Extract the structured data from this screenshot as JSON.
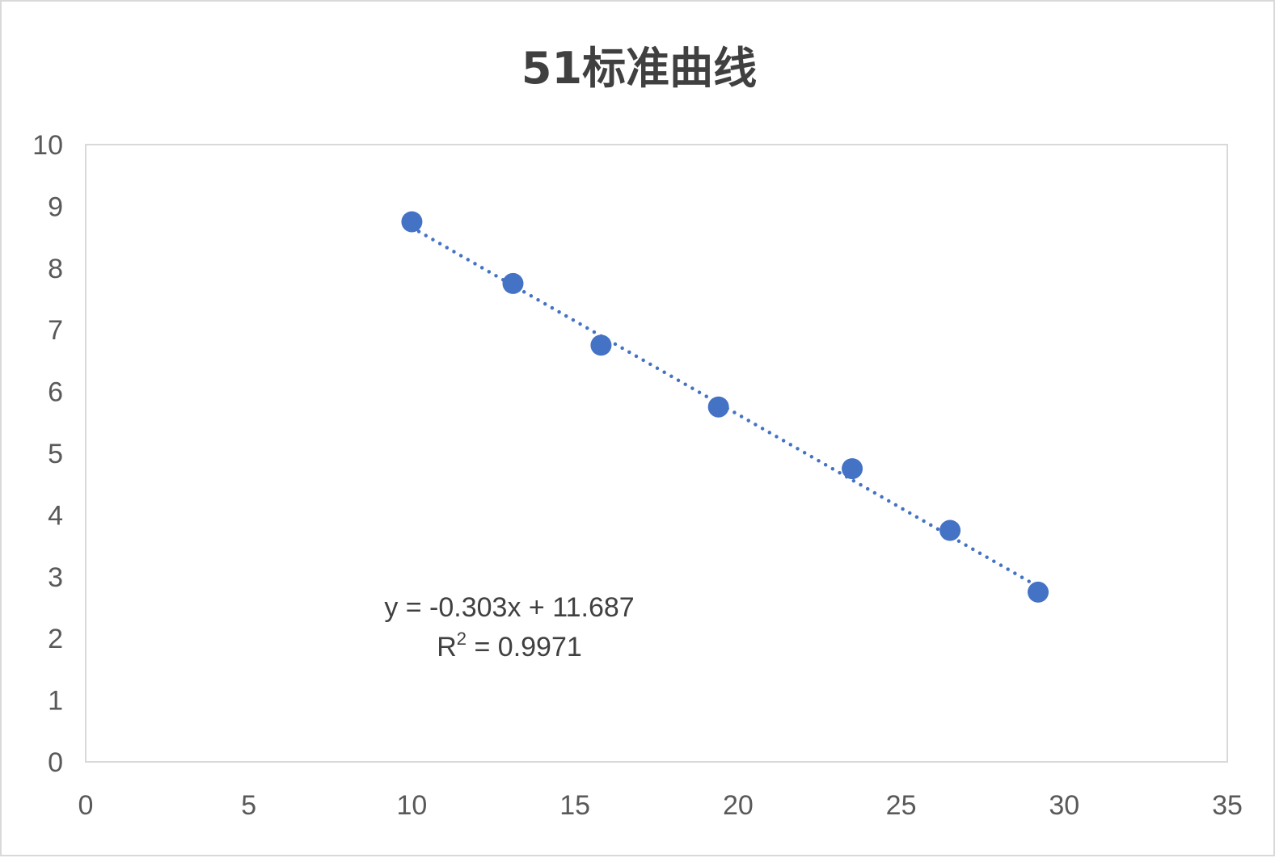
{
  "chart_data": {
    "type": "scatter",
    "title": "51标准曲线",
    "xlabel": "",
    "ylabel": "",
    "xlim": [
      0,
      35
    ],
    "ylim": [
      0,
      10
    ],
    "x_ticks": [
      0,
      5,
      10,
      15,
      20,
      25,
      30,
      35
    ],
    "y_ticks": [
      0,
      1,
      2,
      3,
      4,
      5,
      6,
      7,
      8,
      9,
      10
    ],
    "grid": false,
    "legend": "none",
    "series": [
      {
        "points": [
          {
            "x": 10.0,
            "y": 8.75
          },
          {
            "x": 13.1,
            "y": 7.75
          },
          {
            "x": 15.8,
            "y": 6.75
          },
          {
            "x": 19.4,
            "y": 5.75
          },
          {
            "x": 23.5,
            "y": 4.75
          },
          {
            "x": 26.5,
            "y": 3.75
          },
          {
            "x": 29.2,
            "y": 2.75
          }
        ],
        "color": "#4472c4"
      }
    ],
    "trendline": {
      "type": "linear",
      "style": "dotted",
      "slope": -0.303,
      "intercept": 11.687,
      "x_range": [
        10.0,
        29.2
      ],
      "color": "#4472c4"
    },
    "annotations": {
      "equation": "y = -0.303x + 11.687",
      "r_squared_prefix": "R",
      "r_squared_sup": "2",
      "r_squared_value": " = 0.9971"
    },
    "colors": {
      "marker": "#4472c4",
      "plot_border": "#d9d9d9",
      "tick_text": "#595959",
      "title_text": "#404040"
    }
  }
}
